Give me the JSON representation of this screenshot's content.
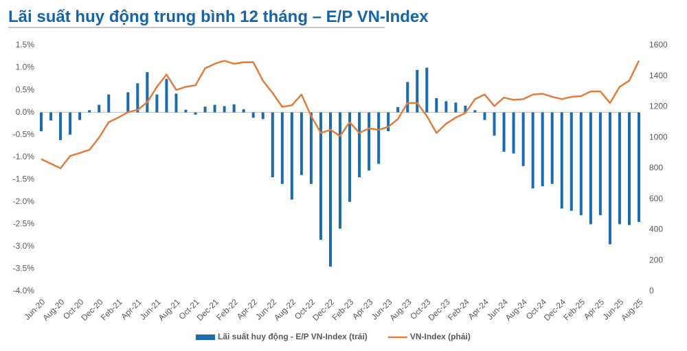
{
  "chart_data": {
    "type": "bar",
    "title": "Lãi suất huy động trung bình 12 tháng – E/P VN-Index",
    "categories": [
      "Jun-20",
      null,
      "Aug-20",
      null,
      "Oct-20",
      null,
      "Dec-20",
      null,
      "Feb-21",
      null,
      "Apr-21",
      null,
      "Jun-21",
      null,
      "Aug-21",
      null,
      "Oct-21",
      null,
      "Dec-21",
      null,
      "Feb-22",
      null,
      "Apr-22",
      null,
      "Jun-22",
      null,
      "Aug-22",
      null,
      "Oct-22",
      null,
      "Dec-22",
      null,
      "Feb-23",
      null,
      "Apr-23",
      null,
      "Jun-23",
      null,
      "Aug-23",
      null,
      "Oct-23",
      null,
      "Dec-23",
      null,
      "Feb-24",
      null,
      "Apr-24",
      null,
      "Jun-24",
      null,
      "Aug-24",
      null,
      "Oct-24",
      null,
      "Dec-24",
      null,
      "Feb-25",
      null,
      "Apr-25",
      null,
      "Jun-25",
      null,
      "Aug-25"
    ],
    "series": [
      {
        "name": "Lãi suất huy động - E/P VN-Index (trái)",
        "type": "bar",
        "color": "#1a6bb0",
        "values": [
          -0.42,
          -0.18,
          -0.62,
          -0.5,
          -0.17,
          0.05,
          0.17,
          0.4,
          0.0,
          0.45,
          0.65,
          0.9,
          0.4,
          0.75,
          0.42,
          0.06,
          -0.05,
          0.13,
          0.17,
          0.14,
          0.18,
          0.07,
          -0.12,
          -0.15,
          -1.45,
          -1.6,
          -1.95,
          -1.4,
          -1.6,
          -2.85,
          -3.45,
          -2.6,
          -2.0,
          -1.45,
          -1.3,
          -1.15,
          -0.42,
          0.12,
          0.68,
          0.95,
          1.0,
          0.32,
          0.25,
          0.22,
          0.15,
          0.05,
          -0.17,
          -0.52,
          -0.88,
          -0.92,
          -1.2,
          -1.7,
          -1.65,
          -1.6,
          -2.15,
          -2.2,
          -2.3,
          -2.5,
          -2.3,
          -2.95,
          -2.5,
          -2.52,
          -2.45
        ]
      },
      {
        "name": "VN-Index (phải)",
        "type": "line",
        "axis": "y2",
        "color": "#e07b39",
        "values": [
          860,
          830,
          800,
          880,
          900,
          920,
          1000,
          1100,
          1130,
          1165,
          1180,
          1230,
          1330,
          1410,
          1310,
          1330,
          1340,
          1450,
          1480,
          1500,
          1480,
          1490,
          1490,
          1370,
          1290,
          1200,
          1210,
          1280,
          1140,
          1030,
          1050,
          1010,
          1100,
          1030,
          1060,
          1050,
          1070,
          1120,
          1225,
          1225,
          1140,
          1030,
          1090,
          1130,
          1160,
          1250,
          1280,
          1205,
          1260,
          1245,
          1250,
          1280,
          1285,
          1265,
          1250,
          1265,
          1270,
          1300,
          1300,
          1225,
          1330,
          1370,
          1500
        ]
      }
    ],
    "ylim": [
      -4.0,
      1.5
    ],
    "yticks": [
      {
        "value": -4.0,
        "label": "-4.0%"
      },
      {
        "value": -3.5,
        "label": "-3.5%"
      },
      {
        "value": -3.0,
        "label": "-3.0%"
      },
      {
        "value": -2.5,
        "label": "-2.5%"
      },
      {
        "value": -2.0,
        "label": "-2.0%"
      },
      {
        "value": -1.5,
        "label": "-1.5%"
      },
      {
        "value": -1.0,
        "label": "-1.0%"
      },
      {
        "value": -0.5,
        "label": "-0.5%"
      },
      {
        "value": 0.0,
        "label": "0.0%"
      },
      {
        "value": 0.5,
        "label": "0.5%"
      },
      {
        "value": 1.0,
        "label": "1.0%"
      },
      {
        "value": 1.5,
        "label": "1.5%"
      }
    ],
    "y2lim": [
      0,
      1600
    ],
    "y2ticks": [
      0,
      200,
      400,
      600,
      800,
      1000,
      1200,
      1400,
      1600
    ],
    "legend": "bottom"
  }
}
